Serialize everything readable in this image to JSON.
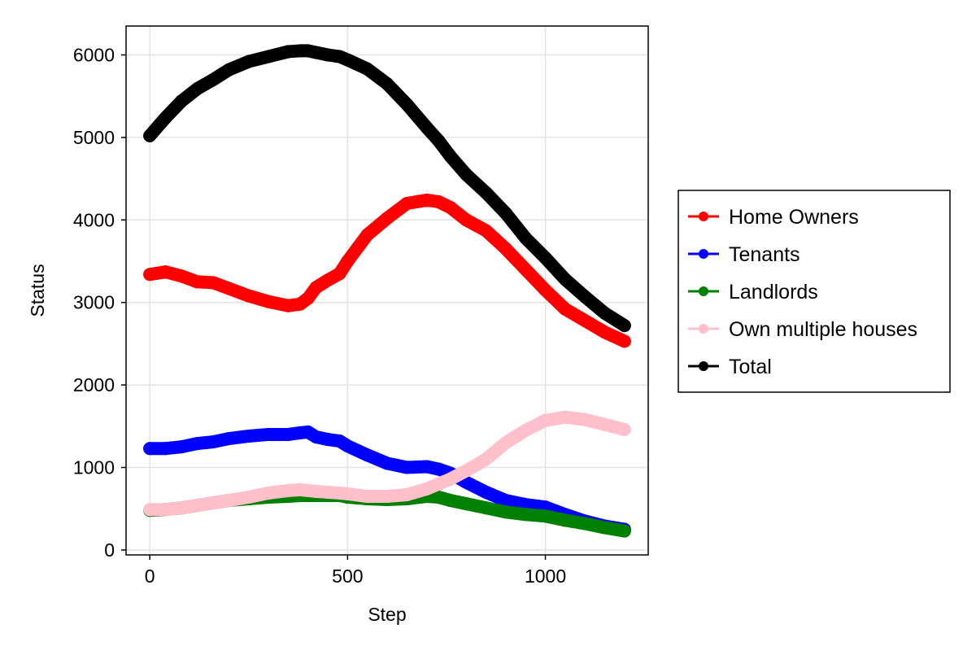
{
  "chart_data": {
    "type": "line",
    "title": "",
    "xlabel": "Step",
    "ylabel": "Status",
    "xlim": [
      -60,
      1260
    ],
    "ylim": [
      -60,
      6350
    ],
    "xticks": [
      0,
      500,
      1000
    ],
    "yticks": [
      0,
      1000,
      2000,
      3000,
      4000,
      5000,
      6000
    ],
    "grid": true,
    "legend_position": "right",
    "markers": true,
    "series": [
      {
        "name": "Home Owners",
        "color": "#ff0000",
        "x": [
          0,
          40,
          80,
          120,
          160,
          200,
          250,
          300,
          350,
          380,
          400,
          420,
          450,
          480,
          500,
          550,
          600,
          650,
          700,
          730,
          760,
          800,
          850,
          900,
          950,
          1000,
          1050,
          1100,
          1150,
          1200
        ],
        "y": [
          3340,
          3370,
          3320,
          3250,
          3240,
          3170,
          3080,
          3010,
          2960,
          2980,
          3050,
          3180,
          3270,
          3350,
          3500,
          3820,
          4020,
          4200,
          4240,
          4220,
          4150,
          4000,
          3870,
          3650,
          3400,
          3150,
          2920,
          2780,
          2640,
          2530
        ]
      },
      {
        "name": "Tenants",
        "color": "#0000ff",
        "x": [
          0,
          40,
          80,
          120,
          160,
          200,
          250,
          300,
          350,
          380,
          400,
          420,
          450,
          480,
          500,
          550,
          600,
          650,
          700,
          730,
          760,
          800,
          850,
          900,
          950,
          1000,
          1050,
          1100,
          1150,
          1200
        ],
        "y": [
          1230,
          1230,
          1250,
          1290,
          1310,
          1350,
          1380,
          1400,
          1400,
          1420,
          1430,
          1370,
          1340,
          1320,
          1260,
          1150,
          1050,
          1000,
          1010,
          980,
          930,
          820,
          700,
          600,
          550,
          520,
          430,
          350,
          290,
          250
        ]
      },
      {
        "name": "Landlords",
        "color": "#008000",
        "x": [
          0,
          40,
          80,
          120,
          160,
          200,
          250,
          300,
          350,
          380,
          400,
          420,
          450,
          480,
          500,
          550,
          600,
          650,
          700,
          730,
          760,
          800,
          850,
          900,
          950,
          1000,
          1050,
          1100,
          1150,
          1200
        ],
        "y": [
          480,
          490,
          510,
          540,
          570,
          600,
          620,
          640,
          650,
          660,
          660,
          660,
          660,
          660,
          640,
          620,
          610,
          620,
          650,
          640,
          600,
          560,
          510,
          460,
          430,
          410,
          360,
          320,
          270,
          230
        ]
      },
      {
        "name": "Own multiple houses",
        "color": "#ffc0cb",
        "x": [
          0,
          40,
          80,
          120,
          160,
          200,
          250,
          300,
          350,
          380,
          400,
          420,
          450,
          480,
          500,
          550,
          600,
          650,
          700,
          730,
          760,
          800,
          850,
          900,
          950,
          1000,
          1050,
          1100,
          1150,
          1200
        ],
        "y": [
          490,
          490,
          510,
          540,
          570,
          600,
          640,
          690,
          720,
          730,
          720,
          710,
          700,
          690,
          680,
          650,
          650,
          670,
          740,
          800,
          860,
          960,
          1100,
          1300,
          1450,
          1570,
          1610,
          1580,
          1520,
          1460
        ]
      },
      {
        "name": "Total",
        "color": "#000000",
        "x": [
          0,
          40,
          80,
          120,
          160,
          200,
          250,
          300,
          350,
          380,
          400,
          420,
          450,
          480,
          500,
          550,
          600,
          650,
          700,
          730,
          760,
          800,
          850,
          900,
          950,
          1000,
          1050,
          1100,
          1150,
          1200
        ],
        "y": [
          5020,
          5240,
          5440,
          5590,
          5700,
          5820,
          5920,
          5980,
          6040,
          6050,
          6050,
          6030,
          6000,
          5980,
          5940,
          5830,
          5650,
          5400,
          5120,
          4960,
          4770,
          4550,
          4330,
          4080,
          3780,
          3540,
          3280,
          3070,
          2870,
          2720
        ]
      }
    ]
  }
}
